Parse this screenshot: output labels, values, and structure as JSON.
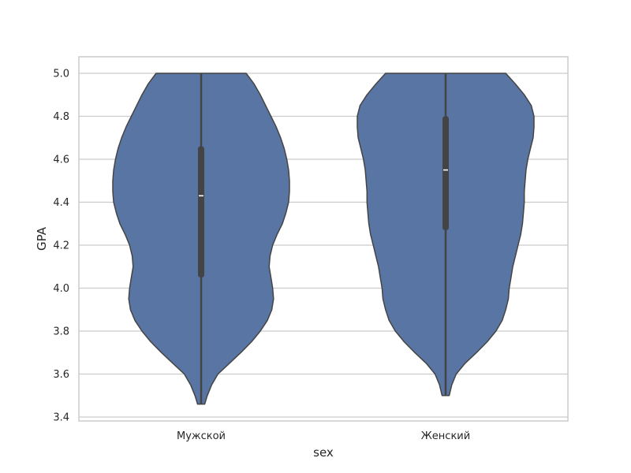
{
  "chart_data": {
    "type": "violin",
    "title": "",
    "xlabel": "sex",
    "ylabel": "GPA",
    "ylim": [
      3.4,
      5.0
    ],
    "yticks": [
      "3.4",
      "3.6",
      "3.8",
      "4.0",
      "4.2",
      "4.4",
      "4.6",
      "4.8",
      "5.0"
    ],
    "grid": true,
    "categories": [
      "Мужской",
      "Женский"
    ],
    "color": "#5975a4",
    "edge_color": "#444444",
    "series": [
      {
        "category": "Мужской",
        "min": 3.46,
        "q1": 4.05,
        "median": 4.43,
        "q3": 4.66,
        "max": 5.0,
        "density": [
          [
            3.46,
            0.04
          ],
          [
            3.5,
            0.07
          ],
          [
            3.55,
            0.12
          ],
          [
            3.6,
            0.19
          ],
          [
            3.65,
            0.32
          ],
          [
            3.7,
            0.45
          ],
          [
            3.75,
            0.57
          ],
          [
            3.8,
            0.67
          ],
          [
            3.85,
            0.75
          ],
          [
            3.9,
            0.8
          ],
          [
            3.95,
            0.82
          ],
          [
            4.0,
            0.81
          ],
          [
            4.05,
            0.79
          ],
          [
            4.1,
            0.77
          ],
          [
            4.15,
            0.78
          ],
          [
            4.2,
            0.81
          ],
          [
            4.25,
            0.86
          ],
          [
            4.3,
            0.92
          ],
          [
            4.35,
            0.96
          ],
          [
            4.4,
            0.99
          ],
          [
            4.45,
            1.0
          ],
          [
            4.5,
            1.0
          ],
          [
            4.55,
            0.99
          ],
          [
            4.6,
            0.97
          ],
          [
            4.65,
            0.94
          ],
          [
            4.7,
            0.9
          ],
          [
            4.75,
            0.85
          ],
          [
            4.8,
            0.79
          ],
          [
            4.85,
            0.73
          ],
          [
            4.9,
            0.67
          ],
          [
            4.95,
            0.6
          ],
          [
            5.0,
            0.51
          ]
        ]
      },
      {
        "category": "Женский",
        "min": 3.5,
        "q1": 4.27,
        "median": 4.55,
        "q3": 4.8,
        "max": 5.0,
        "density": [
          [
            3.5,
            0.04
          ],
          [
            3.55,
            0.07
          ],
          [
            3.6,
            0.12
          ],
          [
            3.65,
            0.22
          ],
          [
            3.7,
            0.35
          ],
          [
            3.75,
            0.47
          ],
          [
            3.8,
            0.57
          ],
          [
            3.85,
            0.64
          ],
          [
            3.9,
            0.68
          ],
          [
            3.95,
            0.71
          ],
          [
            4.0,
            0.72
          ],
          [
            4.05,
            0.74
          ],
          [
            4.1,
            0.76
          ],
          [
            4.15,
            0.79
          ],
          [
            4.2,
            0.82
          ],
          [
            4.25,
            0.85
          ],
          [
            4.3,
            0.87
          ],
          [
            4.35,
            0.88
          ],
          [
            4.4,
            0.89
          ],
          [
            4.45,
            0.89
          ],
          [
            4.5,
            0.9
          ],
          [
            4.55,
            0.91
          ],
          [
            4.6,
            0.93
          ],
          [
            4.65,
            0.96
          ],
          [
            4.7,
            0.99
          ],
          [
            4.75,
            1.0
          ],
          [
            4.8,
            1.0
          ],
          [
            4.85,
            0.97
          ],
          [
            4.9,
            0.89
          ],
          [
            4.95,
            0.79
          ],
          [
            5.0,
            0.68
          ]
        ]
      }
    ]
  }
}
